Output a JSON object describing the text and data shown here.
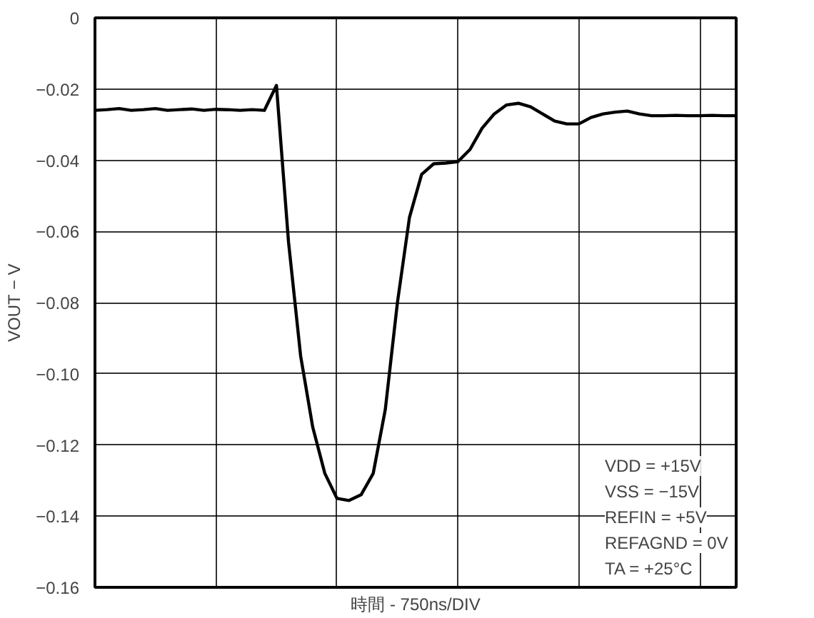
{
  "chart_data": {
    "type": "line",
    "xlabel": "時間 - 750ns/DIV",
    "ylabel": "VOUT − V",
    "categories": [
      null,
      null,
      null,
      null,
      null,
      null,
      null,
      null,
      null,
      null,
      null,
      null,
      null,
      null,
      null,
      null,
      null,
      null,
      null,
      null,
      null,
      null,
      null,
      null,
      null,
      null,
      null,
      null,
      null,
      null,
      null,
      null,
      null,
      null,
      null,
      null,
      null,
      null,
      null,
      null,
      null,
      null,
      null,
      null,
      null,
      null,
      null,
      null,
      null,
      null,
      null,
      null,
      null,
      null
    ],
    "series": [
      {
        "color": "#000000",
        "values": [
          -0.026,
          -0.0258,
          -0.0255,
          -0.026,
          -0.0258,
          -0.0255,
          -0.026,
          -0.0258,
          -0.0256,
          -0.026,
          -0.0257,
          -0.0258,
          -0.026,
          -0.0258,
          -0.026,
          -0.019,
          -0.063,
          -0.095,
          -0.115,
          -0.128,
          -0.135,
          -0.1356,
          -0.134,
          -0.128,
          -0.11,
          -0.08,
          -0.056,
          -0.044,
          -0.041,
          -0.0408,
          -0.0404,
          -0.037,
          -0.031,
          -0.027,
          -0.0245,
          -0.024,
          -0.025,
          -0.027,
          -0.029,
          -0.0298,
          -0.0298,
          -0.028,
          -0.027,
          -0.0265,
          -0.0262,
          -0.027,
          -0.0275,
          -0.0275,
          -0.0274,
          -0.0275,
          -0.0275,
          -0.0274,
          -0.0275,
          -0.0275
        ]
      }
    ],
    "ylim": [
      -0.16,
      0
    ],
    "yticks": [
      0,
      {
        "value": -0.02,
        "label": "−0.02"
      },
      {
        "value": -0.04,
        "label": "−0.04"
      },
      {
        "value": -0.06,
        "label": "−0.06"
      },
      {
        "value": -0.08,
        "label": "−0.08"
      },
      {
        "value": -0.1,
        "label": "−0.10"
      },
      {
        "value": -0.12,
        "label": "−0.12"
      },
      {
        "value": -0.14,
        "label": "−0.14"
      },
      {
        "value": -0.16,
        "label": "−0.16"
      }
    ],
    "grid": true,
    "line_style": "solid",
    "annotations": [
      "VDD = +15V",
      "VSS = −15V",
      "REFIN = +5V",
      "REFAGND = 0V",
      "TA = +25°C"
    ]
  }
}
